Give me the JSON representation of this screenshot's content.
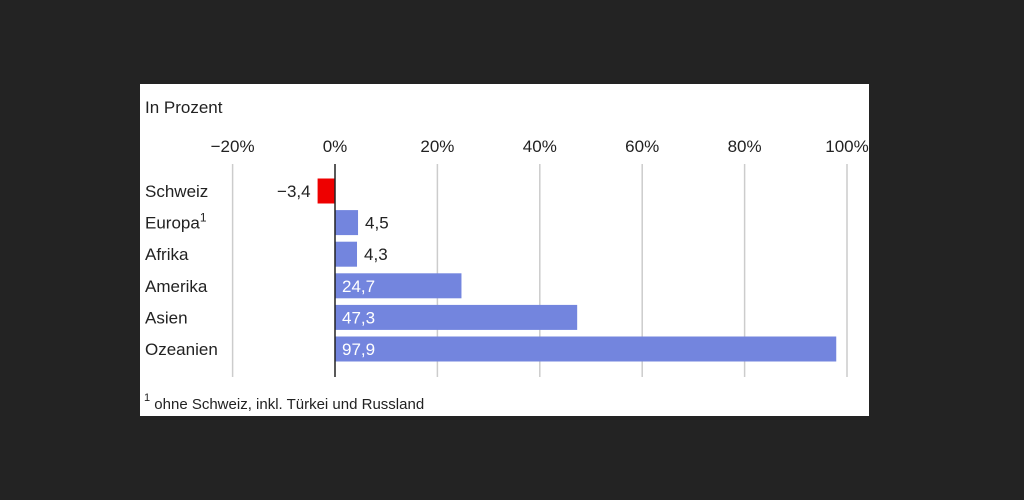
{
  "chart_data": {
    "type": "bar",
    "orientation": "horizontal",
    "unit_label": "In Prozent",
    "categories": [
      "Schweiz",
      "Europa",
      "Afrika",
      "Amerika",
      "Asien",
      "Ozeanien"
    ],
    "category_superscripts": [
      "",
      "1",
      "",
      "",
      "",
      ""
    ],
    "values": [
      -3.4,
      4.5,
      4.3,
      24.7,
      47.3,
      97.9
    ],
    "value_labels": [
      "−3,4",
      "4,5",
      "4,3",
      "24,7",
      "47,3",
      "97,9"
    ],
    "xlim": [
      -20,
      100
    ],
    "ticks": [
      -20,
      0,
      20,
      40,
      60,
      80,
      100
    ],
    "tick_labels": [
      "−20%",
      "0%",
      "20%",
      "40%",
      "60%",
      "80%",
      "100%"
    ],
    "colors": {
      "positive": "#7385de",
      "negative": "#ee0000",
      "grid": "#cccccc",
      "zero_line": "#222222"
    },
    "footnote": {
      "marker": "1",
      "text": "ohne Schweiz, inkl. Türkei und Russland"
    }
  }
}
